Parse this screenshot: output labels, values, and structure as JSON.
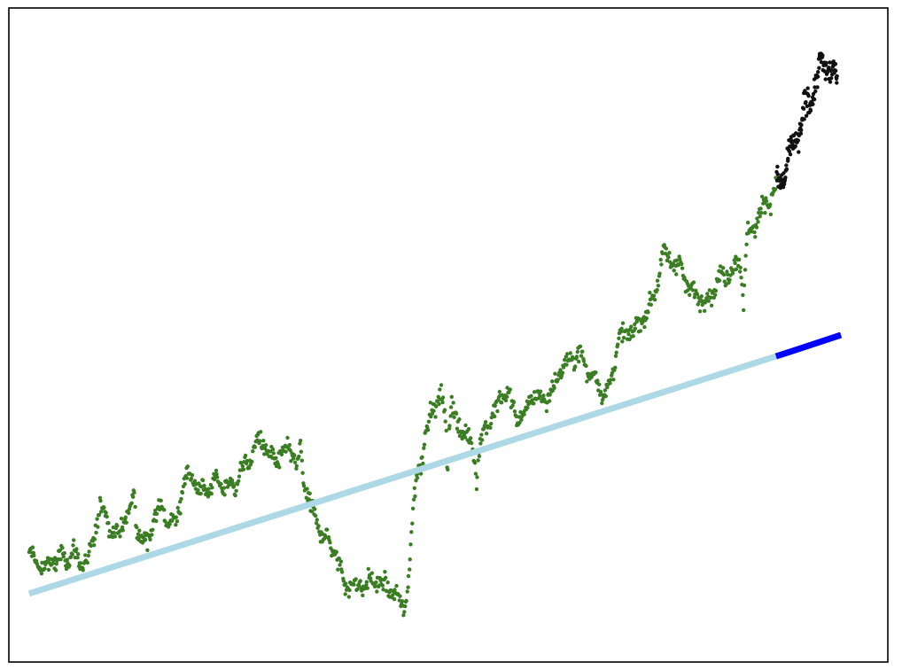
{
  "chart_data": {
    "type": "scatter",
    "title": "",
    "xlabel": "",
    "ylabel": "",
    "xlim": [
      -28,
      1190
    ],
    "ylim": [
      -1.6,
      13.7
    ],
    "grid": false,
    "axis_ticks_visible": false,
    "anchors_x": [
      0,
      20,
      40,
      60,
      80,
      100,
      120,
      140,
      160,
      180,
      200,
      220,
      240,
      260,
      280,
      300,
      320,
      340,
      360,
      380,
      400,
      420,
      440,
      460,
      480,
      500,
      520,
      540,
      560,
      580,
      600,
      620,
      640,
      660,
      680,
      700,
      720,
      740,
      760,
      780,
      800,
      820,
      840,
      860,
      880,
      900,
      920,
      940,
      960,
      980,
      1000,
      1020,
      1040,
      1060,
      1080,
      1100,
      1120
    ],
    "anchors_y": [
      0.9,
      0.6,
      0.8,
      0.9,
      0.7,
      2.0,
      1.4,
      1.9,
      1.2,
      2.0,
      1.6,
      2.8,
      2.4,
      2.6,
      2.5,
      3.0,
      3.6,
      3.1,
      3.4,
      2.6,
      1.6,
      1.1,
      0.2,
      0.2,
      0.3,
      0.1,
      -0.3,
      3.0,
      4.4,
      4.6,
      3.8,
      3.4,
      4.1,
      4.7,
      4.1,
      4.6,
      4.6,
      5.3,
      5.6,
      5.1,
      4.7,
      6.0,
      6.2,
      6.7,
      7.9,
      7.7,
      7.0,
      6.9,
      7.4,
      7.7,
      8.5,
      9.1,
      9.6,
      10.5,
      11.5,
      12.4,
      12.1
    ],
    "series": [
      {
        "role": "history",
        "color": "#3a7d22",
        "x_range": [
          0,
          1035
        ],
        "n_points": 1036,
        "noise": 0.18,
        "spikes": [
          {
            "x": 145,
            "y": 2.4
          },
          {
            "x": 376,
            "y": 3.5
          },
          {
            "x": 580,
            "y": 2.8
          },
          {
            "x": 620,
            "y": 2.6
          },
          {
            "x": 990,
            "y": 6.6
          }
        ]
      },
      {
        "role": "forecast-actual",
        "color": "#111111",
        "x_range": [
          1036,
          1120
        ],
        "n_points": 150,
        "noise": 0.25
      },
      {
        "role": "trend-fit",
        "color": "#add8e6",
        "points": [
          [
            0,
            0.0
          ],
          [
            1035,
            5.55
          ]
        ]
      },
      {
        "role": "trend-extension",
        "color": "#0000ff",
        "points": [
          [
            1035,
            5.55
          ],
          [
            1125,
            6.05
          ]
        ]
      }
    ]
  }
}
